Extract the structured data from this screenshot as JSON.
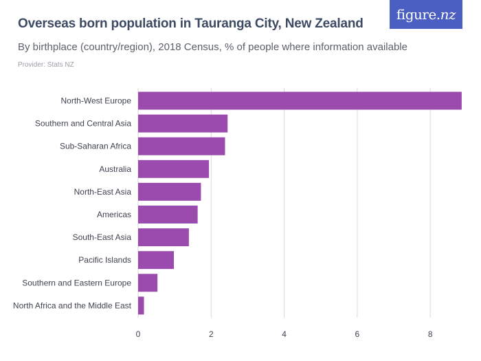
{
  "header": {
    "title": "Overseas born population in Tauranga City, New Zealand",
    "subtitle": "By birthplace (country/region), 2018 Census, % of people where information available",
    "provider": "Provider: Stats NZ"
  },
  "logo": {
    "text_main": "figure",
    "text_dot": ".",
    "text_suffix": "nz"
  },
  "colors": {
    "bar": "#9b4aad",
    "grid": "#d9d9d9",
    "logo_bg": "#4a5fc1"
  },
  "chart_data": {
    "type": "bar",
    "orientation": "horizontal",
    "title": "Overseas born population in Tauranga City, New Zealand",
    "xlabel": "",
    "ylabel": "",
    "categories": [
      "North-West Europe",
      "Southern and Central Asia",
      "Sub-Saharan Africa",
      "Australia",
      "North-East Asia",
      "Americas",
      "South-East Asia",
      "Pacific Islands",
      "Southern and Eastern Europe",
      "North Africa and the Middle East"
    ],
    "values": [
      8.86,
      2.45,
      2.38,
      1.94,
      1.72,
      1.63,
      1.39,
      0.98,
      0.53,
      0.16
    ],
    "xlim": [
      0,
      8.9
    ],
    "xticks": [
      0,
      2,
      4,
      6,
      8
    ],
    "grid": true
  }
}
